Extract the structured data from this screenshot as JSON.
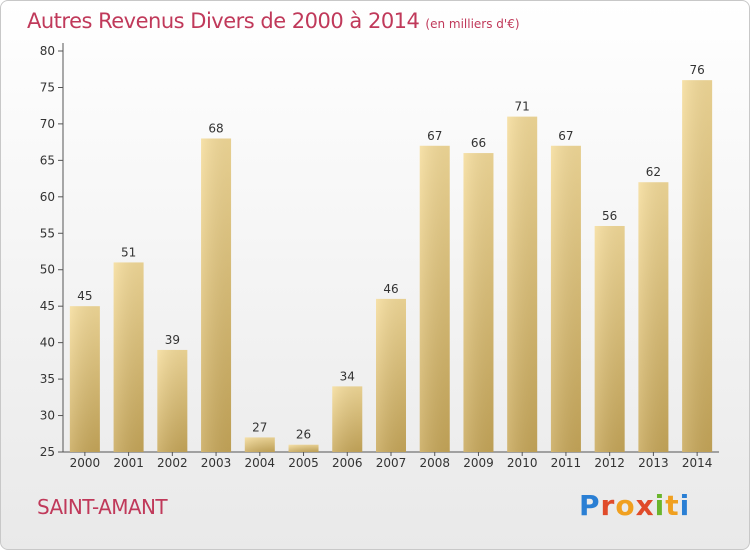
{
  "chart_data": {
    "type": "bar",
    "title": "Autres Revenus Divers de 2000 à 2014",
    "unit_label": "(en milliers d'€)",
    "categories": [
      "2000",
      "2001",
      "2002",
      "2003",
      "2004",
      "2005",
      "2006",
      "2007",
      "2008",
      "2009",
      "2010",
      "2011",
      "2012",
      "2013",
      "2014"
    ],
    "values": [
      45,
      51,
      39,
      68,
      27,
      26,
      34,
      46,
      67,
      66,
      71,
      67,
      56,
      62,
      76
    ],
    "ylim": [
      25,
      80
    ],
    "yticks": [
      25,
      30,
      35,
      40,
      45,
      50,
      55,
      60,
      65,
      70,
      75,
      80
    ],
    "grid": false,
    "bar_color": "#e8c878"
  },
  "footer": {
    "commune": "SAINT-AMANT",
    "logo_text": "Proxiti"
  }
}
